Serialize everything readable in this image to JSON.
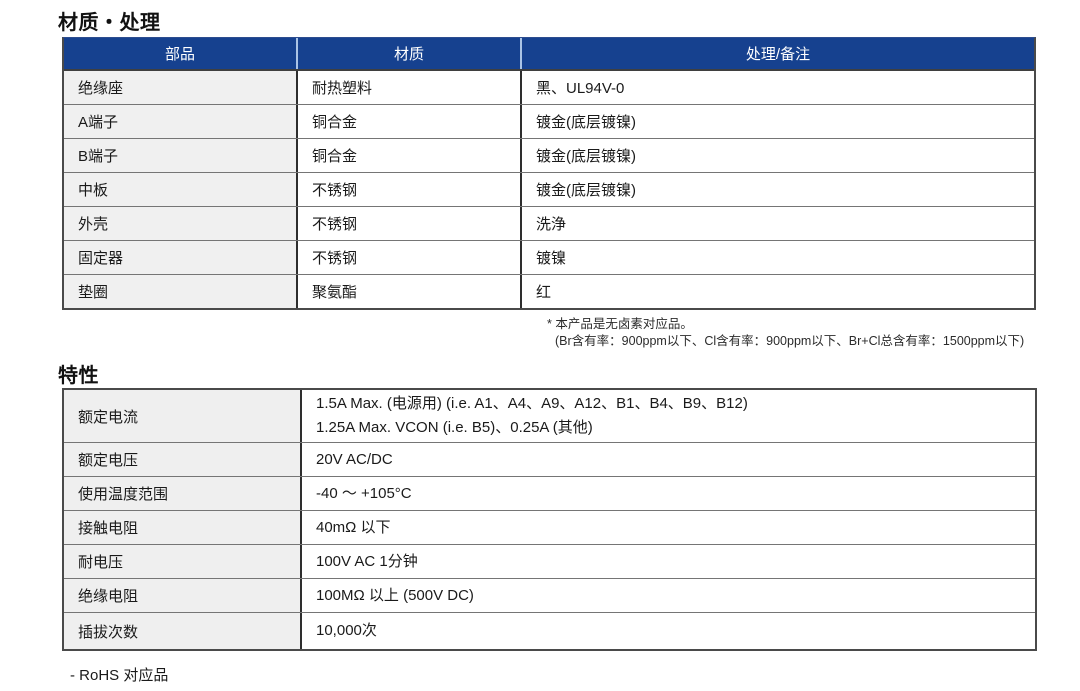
{
  "page": {
    "section1_title": "材质・处理",
    "section2_title": "特性",
    "rohs_note": "- RoHS 对应品"
  },
  "colors": {
    "header_bg": "#16418f",
    "header_divider": "#abc4e6",
    "label_cell_bg": "#f0f0f0",
    "outer_border": "#4a4a4a"
  },
  "material_table": {
    "headers": [
      "部品",
      "材质",
      "处理/备注"
    ],
    "rows": [
      {
        "part": "绝缘座",
        "material": "耐热塑料",
        "treatment": "黑、UL94V-0"
      },
      {
        "part": "A端子",
        "material": "铜合金",
        "treatment": "镀金(底层镀镍)"
      },
      {
        "part": "B端子",
        "material": "铜合金",
        "treatment": "镀金(底层镀镍)"
      },
      {
        "part": "中板",
        "material": "不锈钢",
        "treatment": "镀金(底层镀镍)"
      },
      {
        "part": "外壳",
        "material": "不锈钢",
        "treatment": "洗浄"
      },
      {
        "part": "固定器",
        "material": "不锈钢",
        "treatment": "镀镍"
      },
      {
        "part": "垫圈",
        "material": "聚氨酯",
        "treatment": "红"
      }
    ],
    "footnote_line1": "* 本产品是无卤素对应品。",
    "footnote_line2": "(Br含有率：900ppm以下、Cl含有率：900ppm以下、Br+Cl总含有率：1500ppm以下)"
  },
  "spec_table": {
    "rows": [
      {
        "label": "额定电流",
        "value": "1.5A Max. (电源用) (i.e. A1、A4、A9、A12、B1、B4、B9、B12)",
        "value2": "1.25A Max. VCON (i.e. B5)、0.25A (其他)"
      },
      {
        "label": "额定电压",
        "value": "20V AC/DC"
      },
      {
        "label": "使用温度范围",
        "value": "-40 ～ +105°C"
      },
      {
        "label": "接触电阻",
        "value": "40mΩ 以下"
      },
      {
        "label": "耐电压",
        "value": "100V AC 1分钟"
      },
      {
        "label": "绝缘电阻",
        "value": "100MΩ 以上 (500V DC)"
      },
      {
        "label": "插拔次数",
        "value": "10,000次"
      }
    ]
  }
}
